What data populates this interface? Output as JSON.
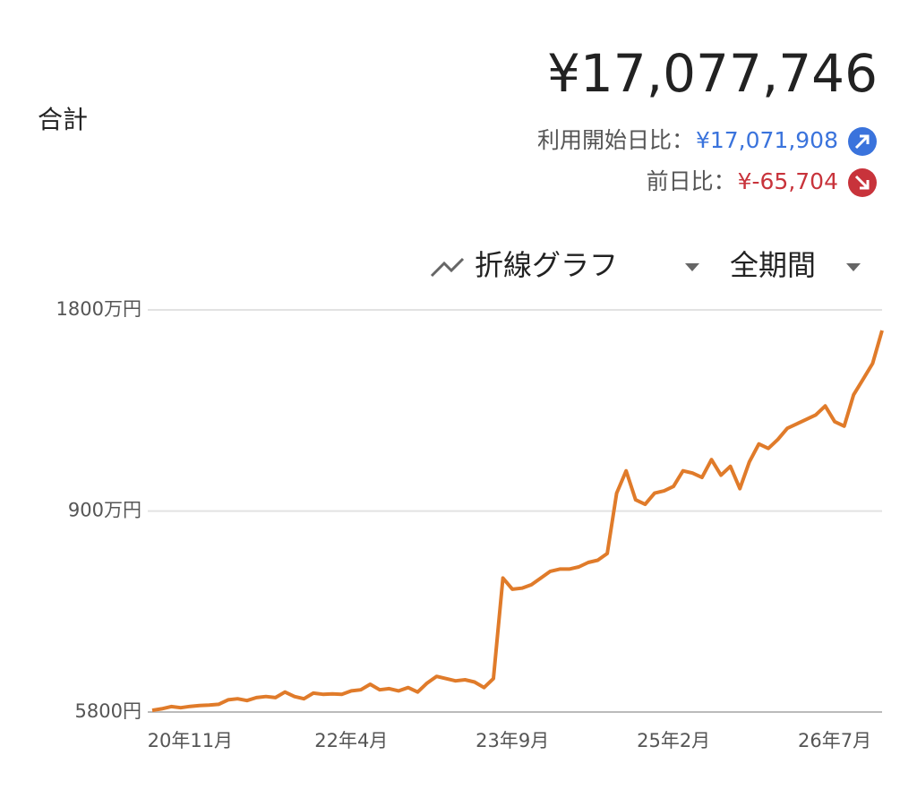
{
  "header": {
    "label": "合計",
    "total": "¥17,077,746",
    "since_start_label": "利用開始日比：",
    "since_start_value": "¥17,071,908",
    "day_label": "前日比：",
    "day_value": "¥-65,704"
  },
  "controls": {
    "chart_kind": "折線グラフ",
    "period": "全期間"
  },
  "chart_data": {
    "type": "line",
    "x": [
      "2020-07",
      "2020-08",
      "2020-09",
      "2020-10",
      "2020-11",
      "2020-12",
      "2021-01",
      "2021-02",
      "2021-03",
      "2021-04",
      "2021-05",
      "2021-06",
      "2021-07",
      "2021-08",
      "2021-09",
      "2021-10",
      "2021-11",
      "2021-12",
      "2022-01",
      "2022-02",
      "2022-03",
      "2022-04",
      "2022-05",
      "2022-06",
      "2022-07",
      "2022-08",
      "2022-09",
      "2022-10",
      "2022-11",
      "2022-12",
      "2023-01",
      "2023-02",
      "2023-03",
      "2023-04",
      "2023-05",
      "2023-06",
      "2023-07",
      "2023-08",
      "2023-09",
      "2023-10",
      "2023-11",
      "2023-12",
      "2024-01",
      "2024-02",
      "2024-03",
      "2024-04",
      "2024-05",
      "2024-06",
      "2024-07",
      "2024-08",
      "2024-09",
      "2024-10",
      "2024-11",
      "2024-12",
      "2025-01",
      "2025-02",
      "2025-03",
      "2025-04",
      "2025-05",
      "2025-06",
      "2025-07",
      "2025-08",
      "2025-09",
      "2025-10",
      "2025-11",
      "2025-12",
      "2026-01",
      "2026-02",
      "2026-03",
      "2026-04",
      "2026-05",
      "2026-06",
      "2026-07",
      "2026-08",
      "2026-09",
      "2026-10",
      "2026-11",
      "2026-12"
    ],
    "series": [
      {
        "color": "#e07b2a",
        "values": [
          80000,
          150000,
          250000,
          200000,
          260000,
          300000,
          320000,
          350000,
          550000,
          600000,
          520000,
          650000,
          700000,
          650000,
          900000,
          700000,
          600000,
          850000,
          800000,
          820000,
          800000,
          950000,
          1000000,
          1250000,
          1000000,
          1050000,
          950000,
          1100000,
          900000,
          1300000,
          1600000,
          1500000,
          1400000,
          1450000,
          1350000,
          1100000,
          1500000,
          6000000,
          5500000,
          5550000,
          5700000,
          6000000,
          6300000,
          6400000,
          6400000,
          6500000,
          6700000,
          6800000,
          7100000,
          9800000,
          10800000,
          9500000,
          9300000,
          9800000,
          9900000,
          10100000,
          10800000,
          10700000,
          10500000,
          11300000,
          10600000,
          11000000,
          10000000,
          11200000,
          12000000,
          11800000,
          12200000,
          12700000,
          12900000,
          13100000,
          13300000,
          13700000,
          13000000,
          12800000,
          14200000,
          14900000,
          15600000,
          17077746
        ]
      }
    ],
    "xlim": [
      "2020-07",
      "2026-12"
    ],
    "xticks": [
      {
        "value": "2020-11",
        "label": "20年11月"
      },
      {
        "value": "2022-04",
        "label": "22年4月"
      },
      {
        "value": "2023-09",
        "label": "23年9月"
      },
      {
        "value": "2025-02",
        "label": "25年2月"
      },
      {
        "value": "2026-07",
        "label": "26年7月"
      }
    ],
    "ylim": [
      5800,
      18000000
    ],
    "yticks": [
      {
        "value": 5800,
        "label": "5800円"
      },
      {
        "value": 9000000,
        "label": "900万円"
      },
      {
        "value": 18000000,
        "label": "1800万円"
      }
    ],
    "grid": true
  }
}
